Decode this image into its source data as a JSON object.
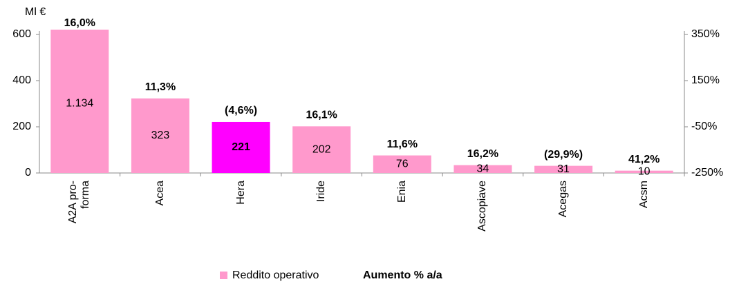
{
  "chart_data": {
    "type": "bar",
    "y_unit": "Ml €",
    "categories": [
      "A2A pro-forma",
      "Acea",
      "Hera",
      "Iride",
      "Enia",
      "Ascopiave",
      "Acegas",
      "Acsm"
    ],
    "series": [
      {
        "name": "Reddito operativo",
        "color": "#ff99cc",
        "highlight_color": "#ff00ff",
        "highlight_index": 2,
        "values": [
          1134,
          323,
          221,
          202,
          76,
          34,
          31,
          10
        ],
        "value_labels": [
          "1.134",
          "323",
          "221",
          "202",
          "76",
          "34",
          "31",
          "10"
        ]
      },
      {
        "name": "Aumento % a/a",
        "axis": "y2",
        "values": [
          16.0,
          11.3,
          -4.6,
          16.1,
          11.6,
          16.2,
          -29.9,
          41.2
        ],
        "value_labels": [
          "16,0%",
          "11,3%",
          "(4,6%)",
          "16,1%",
          "11,6%",
          "16,2%",
          "(29,9%)",
          "41,2%"
        ]
      }
    ],
    "ylim": [
      0,
      600
    ],
    "yticks": [
      0,
      200,
      400,
      600
    ],
    "y2lim": [
      -250,
      350
    ],
    "y2ticks": [
      {
        "value": -250,
        "label": "-250%"
      },
      {
        "value": -50,
        "label": "-50%"
      },
      {
        "value": 150,
        "label": "150%"
      },
      {
        "value": 350,
        "label": "350%"
      }
    ],
    "legend": "bottom"
  }
}
